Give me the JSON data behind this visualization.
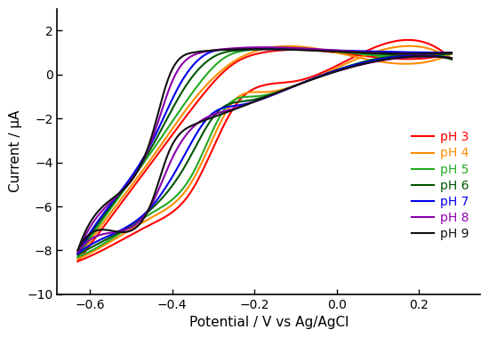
{
  "title": "",
  "xlabel": "Potential / V vs Ag/AgCl",
  "ylabel": "Current / μA",
  "xlim": [
    -0.68,
    0.35
  ],
  "ylim": [
    -10,
    3
  ],
  "xticks": [
    -0.6,
    -0.4,
    -0.2,
    0.0,
    0.2
  ],
  "yticks": [
    -10,
    -8,
    -6,
    -4,
    -2,
    0,
    2
  ],
  "series": [
    {
      "label": "pH 3",
      "color": "#FF0000",
      "upper_pts": [
        [
          -0.63,
          -8.5
        ],
        [
          -0.55,
          -6.5
        ],
        [
          -0.45,
          -4.0
        ],
        [
          -0.35,
          -1.5
        ],
        [
          -0.25,
          0.5
        ],
        [
          -0.18,
          1.0
        ],
        [
          0.0,
          1.0
        ],
        [
          0.28,
          0.95
        ]
      ],
      "lower_pts": [
        [
          -0.63,
          -8.5
        ],
        [
          -0.55,
          -7.8
        ],
        [
          -0.45,
          -6.8
        ],
        [
          -0.35,
          -5.2
        ],
        [
          -0.25,
          -1.5
        ],
        [
          -0.18,
          -0.5
        ],
        [
          -0.1,
          -0.3
        ],
        [
          0.0,
          0.4
        ],
        [
          0.28,
          0.7
        ]
      ]
    },
    {
      "label": "pH 4",
      "color": "#FF8C00",
      "upper_pts": [
        [
          -0.63,
          -8.4
        ],
        [
          -0.55,
          -6.3
        ],
        [
          -0.45,
          -3.8
        ],
        [
          -0.35,
          -1.2
        ],
        [
          -0.25,
          0.6
        ],
        [
          -0.2,
          1.05
        ],
        [
          0.0,
          1.0
        ],
        [
          0.28,
          0.95
        ]
      ],
      "lower_pts": [
        [
          -0.63,
          -8.4
        ],
        [
          -0.55,
          -7.6
        ],
        [
          -0.45,
          -6.5
        ],
        [
          -0.35,
          -4.8
        ],
        [
          -0.25,
          -1.2
        ],
        [
          -0.18,
          -0.8
        ],
        [
          -0.1,
          -0.5
        ],
        [
          0.0,
          0.3
        ],
        [
          0.28,
          0.7
        ]
      ]
    },
    {
      "label": "pH 5",
      "color": "#22AA22",
      "upper_pts": [
        [
          -0.63,
          -8.3
        ],
        [
          -0.55,
          -6.1
        ],
        [
          -0.45,
          -3.5
        ],
        [
          -0.35,
          -0.8
        ],
        [
          -0.27,
          0.8
        ],
        [
          -0.22,
          1.1
        ],
        [
          0.0,
          1.05
        ],
        [
          0.28,
          0.95
        ]
      ],
      "lower_pts": [
        [
          -0.63,
          -8.3
        ],
        [
          -0.55,
          -7.5
        ],
        [
          -0.45,
          -6.3
        ],
        [
          -0.35,
          -4.5
        ],
        [
          -0.27,
          -1.5
        ],
        [
          -0.2,
          -1.0
        ],
        [
          -0.1,
          -0.5
        ],
        [
          0.0,
          0.2
        ],
        [
          0.28,
          0.7
        ]
      ]
    },
    {
      "label": "pH 6",
      "color": "#005500",
      "upper_pts": [
        [
          -0.63,
          -8.2
        ],
        [
          -0.55,
          -6.0
        ],
        [
          -0.45,
          -3.3
        ],
        [
          -0.37,
          -0.6
        ],
        [
          -0.29,
          0.9
        ],
        [
          -0.24,
          1.1
        ],
        [
          0.0,
          1.05
        ],
        [
          0.28,
          0.95
        ]
      ],
      "lower_pts": [
        [
          -0.63,
          -8.2
        ],
        [
          -0.55,
          -7.4
        ],
        [
          -0.45,
          -6.1
        ],
        [
          -0.37,
          -4.2
        ],
        [
          -0.29,
          -1.7
        ],
        [
          -0.22,
          -1.2
        ],
        [
          -0.1,
          -0.5
        ],
        [
          0.0,
          0.2
        ],
        [
          0.28,
          0.7
        ]
      ]
    },
    {
      "label": "pH 7",
      "color": "#0000EE",
      "upper_pts": [
        [
          -0.63,
          -8.15
        ],
        [
          -0.55,
          -5.9
        ],
        [
          -0.45,
          -3.1
        ],
        [
          -0.38,
          -0.4
        ],
        [
          -0.31,
          1.0
        ],
        [
          -0.26,
          1.15
        ],
        [
          0.0,
          1.1
        ],
        [
          0.28,
          1.0
        ]
      ],
      "lower_pts": [
        [
          -0.63,
          -8.15
        ],
        [
          -0.55,
          -7.3
        ],
        [
          -0.45,
          -6.0
        ],
        [
          -0.38,
          -4.0
        ],
        [
          -0.31,
          -1.9
        ],
        [
          -0.24,
          -1.4
        ],
        [
          -0.1,
          -0.5
        ],
        [
          0.0,
          0.2
        ],
        [
          0.28,
          0.75
        ]
      ]
    },
    {
      "label": "pH 8",
      "color": "#8B00AA",
      "upper_pts": [
        [
          -0.63,
          -8.1
        ],
        [
          -0.55,
          -5.8
        ],
        [
          -0.45,
          -3.0
        ],
        [
          -0.4,
          -0.3
        ],
        [
          -0.33,
          1.0
        ],
        [
          -0.28,
          1.15
        ],
        [
          0.0,
          1.1
        ],
        [
          0.28,
          1.0
        ]
      ],
      "lower_pts": [
        [
          -0.63,
          -8.1
        ],
        [
          -0.55,
          -7.2
        ],
        [
          -0.45,
          -5.9
        ],
        [
          -0.4,
          -3.8
        ],
        [
          -0.33,
          -2.1
        ],
        [
          -0.26,
          -1.6
        ],
        [
          -0.1,
          -0.5
        ],
        [
          0.0,
          0.15
        ],
        [
          0.28,
          0.75
        ]
      ]
    },
    {
      "label": "pH 9",
      "color": "#111111",
      "upper_pts": [
        [
          -0.63,
          -8.0
        ],
        [
          -0.55,
          -5.7
        ],
        [
          -0.45,
          -2.8
        ],
        [
          -0.41,
          -0.2
        ],
        [
          -0.35,
          1.0
        ],
        [
          -0.3,
          1.1
        ],
        [
          0.0,
          1.05
        ],
        [
          0.28,
          1.0
        ]
      ],
      "lower_pts": [
        [
          -0.63,
          -8.0
        ],
        [
          -0.55,
          -7.1
        ],
        [
          -0.45,
          -5.8
        ],
        [
          -0.41,
          -3.6
        ],
        [
          -0.35,
          -2.3
        ],
        [
          -0.28,
          -1.8
        ],
        [
          -0.1,
          -0.5
        ],
        [
          0.0,
          0.15
        ],
        [
          0.28,
          0.75
        ]
      ]
    }
  ],
  "legend_loc": "center right",
  "background_color": "#ffffff",
  "linewidth": 1.5
}
